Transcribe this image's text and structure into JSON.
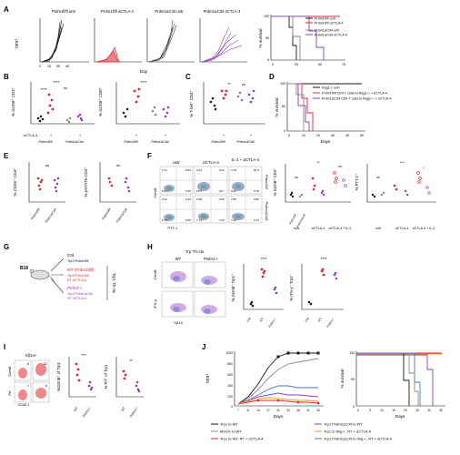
{
  "colors": {
    "black": "#1a1a1a",
    "gray": "#8a8a8a",
    "red": "#e8262b",
    "purple": "#8e3fb8",
    "orange": "#f29a1c",
    "blue": "#4a78c8",
    "flow": "#4a5fb4",
    "violet": "#a65ac8"
  },
  "panels": {
    "A": "A",
    "B": "B",
    "C": "C",
    "D": "D",
    "E": "E",
    "F": "F",
    "G": "G",
    "H": "H",
    "I": "I",
    "J": "J"
  },
  "a": {
    "titles": [
      "Prdm1fl/fl untr",
      "Prdm1fl/fl αCTLA-4",
      "Prdm1ΔCd4 untr",
      "Prdm1ΔCd4 αCTLA-4"
    ],
    "ylabel": "mm³",
    "ticks": [
      "0",
      "15",
      "30",
      "45"
    ],
    "xlabel": "Day",
    "legend": [
      "Prdm1fl/fl untr",
      "Prdm1fl/fl αCTLA-4",
      "Prdm1ΔCd4 untr",
      "Prdm1ΔCd4 αCTLA-4"
    ],
    "surv_ylabel": "% survival",
    "surv_yticks": [
      "100",
      "50",
      "0"
    ],
    "surv_xticks": [
      "0",
      "25",
      "50",
      "75"
    ]
  },
  "b": {
    "ylabel1": "% GzmB⁺ CD4⁺",
    "ylabel2": "% GzmB⁺ CD8⁺",
    "treat_label": "αCTLA-4",
    "signs": [
      "-",
      "+",
      "-",
      "+"
    ],
    "groups": [
      "Prdm1fl/fl",
      "Prdm1ΔCd4"
    ],
    "stars_top": "****",
    "stars_left": "****",
    "ns": "ns"
  },
  "c": {
    "ylabel": "% T-bet⁺ CD4⁺",
    "signs": [
      "-",
      "+",
      "-",
      "+"
    ],
    "groups": [
      "Prdm1fl/fl",
      "Prdm1ΔCd4"
    ],
    "stars": "**",
    "ns": "ns"
  },
  "d": {
    "legend": [
      "Rag1-/- untr",
      "Prdm1fl/fl CD4 T cells to Rag1-/- + αCTLA-4",
      "Prdm1ΔCd4 CD4 T cells to Rag1-/- + αCTLA-4"
    ],
    "ylabel": "% survival",
    "yticks": [
      "100",
      "50",
      "0"
    ],
    "xticks": [
      "0",
      "10",
      "20",
      "30",
      "40",
      "50"
    ],
    "xlabel": "Days"
  },
  "e": {
    "ylabel1": "% CD25⁺ CD4⁺",
    "ylabel2": "% pSTAT5 CD4⁺",
    "ns": "ns",
    "groups": [
      "Prdm1fl/fl",
      "Prdm1ΔCd4"
    ]
  },
  "f": {
    "col_titles": [
      "untr",
      "αCTLA-4",
      "IL-2 + αCTLA-4"
    ],
    "row_titles": [
      "Prdm1fl/fl",
      "Prdm1ΔCd4"
    ],
    "xaxis": "PTT-1",
    "yaxis": "GzmB",
    "quadrants": [
      [
        "2.71",
        "0.83",
        "2.24",
        "9.21",
        "3.18",
        "30.3"
      ],
      [
        "8.97",
        "1.95",
        "18.8",
        "34.7",
        "8.22",
        "3.78"
      ],
      [
        "0.12",
        "0.33",
        "0.28",
        "0.20",
        "1.56",
        "0.86"
      ],
      [
        "6.79",
        "2.65",
        "7.74",
        "3.33",
        "7.44",
        "3.14"
      ]
    ],
    "ylabel1": "% GzmB⁺ CD4⁺",
    "ylabel2": "% PTT-1⁺",
    "cats": [
      "untr",
      "αCTLA-4",
      "αCTLA-4 + IL-2"
    ],
    "geno": [
      "Prdm1fl/fl",
      "Prdm1ΔCd4"
    ],
    "sig1": [
      "ns",
      "**",
      "ns"
    ],
    "sig2": [
      "ns",
      "***",
      "*"
    ]
  },
  "g": {
    "mouse_label": "B16",
    "ctrl": "Ctrl.",
    "ctrl_sub": "Trp1 Prdm1fl/fl",
    "wt": "WT (Prdm1fl/fl)",
    "wt_sub1": "Trp1 Prdm1fl/fl",
    "wt_sub2": "RT, αCTLA-4",
    "ko": "Prdm1-/-",
    "ko_sub1": "Trp1 Prdm1ΔCd4",
    "ko_sub2": "RT, αCTLA-4",
    "side": "Trp1 Th-ctx"
  },
  "h": {
    "title": "Trp Th-ctx",
    "col_wt": "WT",
    "col_ko": "Prdm1-/-",
    "row1": "GzmB",
    "row2": "IFN-γ",
    "xaxis": "Vβ14",
    "ylabel1": "% GzmB⁺ Trp1⁺",
    "ylabel2": "% IFN-γ⁺ Trp1⁺",
    "groups": [
      "Ctrl",
      "WT",
      "Prdm1-/-"
    ],
    "stars": "****"
  },
  "i": {
    "title": "Vβ14+",
    "row1": "GzmB",
    "row2": "Prf",
    "xaxis": "CD45.1",
    "vals": [
      "8",
      "32",
      "1",
      "6"
    ],
    "ylabel1": "%GzmB⁺ of Trp1",
    "ylabel2": "% Prf⁺ of Trp1",
    "groups": [
      "WT",
      "Prdm1-/-"
    ],
    "stars1": "***",
    "stars2": "**"
  },
  "j": {
    "ylabel": "mm³",
    "yticks": [
      "1000",
      "800",
      "600",
      "400",
      "200",
      "0"
    ],
    "xticks": [
      "7",
      "11",
      "14",
      "17",
      "21",
      "24",
      "28",
      "31",
      "34"
    ],
    "xlabel": "Days",
    "surv_ylabel": "% survival",
    "surv_yticks": [
      "100",
      "50",
      "0"
    ],
    "surv_xticks": [
      "0",
      "5",
      "10",
      "15",
      "20",
      "25",
      "30",
      "35"
    ],
    "legend": [
      "Trp1 to WT",
      "Trp1 Prdm1ΔCd4 to WT",
      "MOCK to WT",
      "Trp1 to Ifng-/-, RT + αCTLA-4",
      "Trp1 to WT, RT + αCTLA-4",
      "Trp1 Prdm1ΔCd4 to Ifng-/-, RT + αCTLA-4"
    ]
  }
}
